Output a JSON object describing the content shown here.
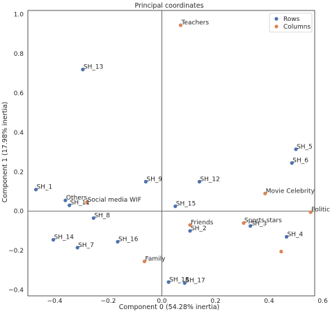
{
  "chart_data": {
    "type": "scatter",
    "title": "Principal coordinates",
    "xlabel": "Component 0 (54.28% inertia)",
    "ylabel": "Component 1 (17.98% inertia)",
    "xlim": [
      -0.5,
      0.57
    ],
    "ylim": [
      -0.43,
      1.02
    ],
    "xticks": [
      -0.4,
      -0.2,
      0.0,
      0.2,
      0.4,
      0.6
    ],
    "yticks": [
      -0.4,
      -0.2,
      0.0,
      0.2,
      0.4,
      0.6,
      0.8,
      1.0
    ],
    "xtick_labels": [
      "−0.4",
      "−0.2",
      "0.0",
      "0.2",
      "0.4",
      "0.6"
    ],
    "ytick_labels": [
      "−0.4",
      "−0.2",
      "0.0",
      "0.2",
      "0.4",
      "0.6",
      "0.8",
      "1.0"
    ],
    "grid": false,
    "zero_lines": true,
    "legend": {
      "position": "top-right",
      "entries": [
        "Rows",
        "Columns"
      ]
    },
    "colors": {
      "Rows": "#4c72b0",
      "Columns": "#dd8452"
    },
    "series": [
      {
        "name": "Rows",
        "points": [
          {
            "label": "SH_1",
            "x": -0.47,
            "y": 0.11
          },
          {
            "label": "SH_3",
            "x": 0.33,
            "y": -0.075
          },
          {
            "label": "SH_4",
            "x": 0.465,
            "y": -0.13
          },
          {
            "label": "SH_5",
            "x": 0.5,
            "y": 0.315
          },
          {
            "label": "SH_6",
            "x": 0.485,
            "y": 0.245
          },
          {
            "label": "SH_7",
            "x": -0.315,
            "y": -0.185
          },
          {
            "label": "SH_8",
            "x": -0.255,
            "y": -0.035
          },
          {
            "label": "SH_9",
            "x": -0.06,
            "y": 0.15
          },
          {
            "label": "SH_11",
            "x": -0.345,
            "y": 0.03
          },
          {
            "label": "SH_12",
            "x": 0.14,
            "y": 0.15
          },
          {
            "label": "SH_13",
            "x": -0.295,
            "y": 0.72
          },
          {
            "label": "SH_14",
            "x": -0.405,
            "y": -0.145
          },
          {
            "label": "SH_15",
            "x": 0.05,
            "y": 0.025
          },
          {
            "label": "SH_16",
            "x": -0.165,
            "y": -0.155
          },
          {
            "label": "SH_17",
            "x": 0.085,
            "y": -0.365
          },
          {
            "label": "SH_18",
            "x": 0.025,
            "y": -0.36
          },
          {
            "label": "SH_2",
            "x": 0.105,
            "y": -0.1
          },
          {
            "label": "Others",
            "x": -0.36,
            "y": 0.055
          }
        ]
      },
      {
        "name": "Columns",
        "points": [
          {
            "label": "Teachers",
            "x": 0.07,
            "y": 0.945
          },
          {
            "label": "Social media WIF",
            "x": -0.28,
            "y": 0.045
          },
          {
            "label": "Movie Celebrity",
            "x": 0.385,
            "y": 0.09
          },
          {
            "label": "Politician",
            "x": 0.555,
            "y": -0.005
          },
          {
            "label": "Sports stars",
            "x": 0.305,
            "y": -0.06
          },
          {
            "label": "Friends",
            "x": 0.105,
            "y": -0.07
          },
          {
            "label": "Family",
            "x": -0.065,
            "y": -0.255
          },
          {
            "label": "",
            "x": 0.445,
            "y": -0.205
          }
        ]
      }
    ]
  }
}
